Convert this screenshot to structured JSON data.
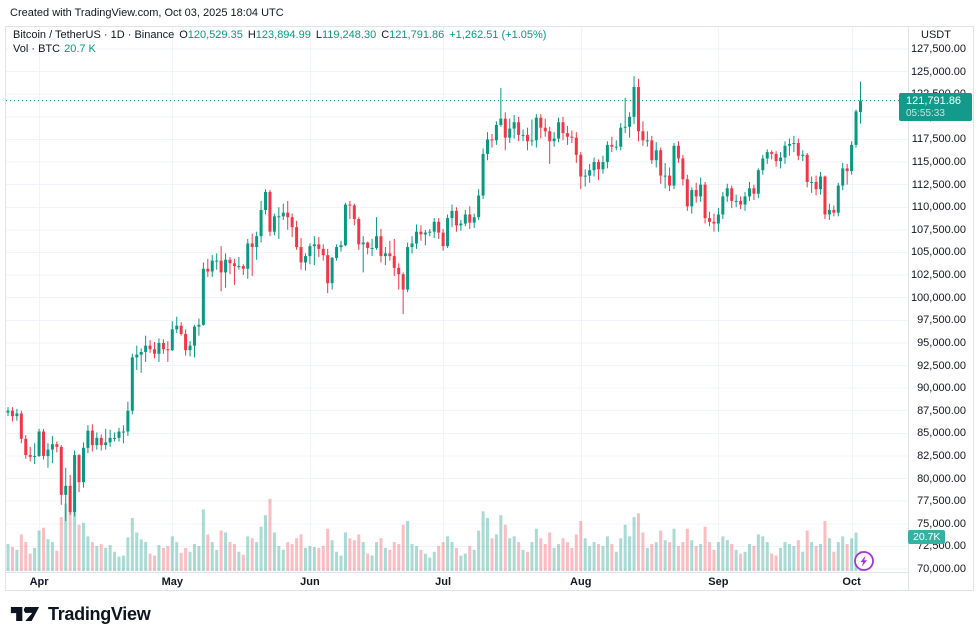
{
  "header": {
    "created_text": "Created with TradingView.com, Oct 03, 2025 18:04 UTC"
  },
  "legend": {
    "title": "Bitcoin / TetherUS · 1D · Binance",
    "ohlc": [
      {
        "label": "O",
        "value": "120,529.35"
      },
      {
        "label": "H",
        "value": "123,894.99"
      },
      {
        "label": "L",
        "value": "119,248.30"
      },
      {
        "label": "C",
        "value": "121,791.86"
      }
    ],
    "change": "+1,262.51 (+1.05%)",
    "volume_label": "Vol · BTC",
    "volume_value": "20.7 K"
  },
  "price_axis": {
    "currency_label": "USDT",
    "ticks": [
      "127,500.00",
      "125,000.00",
      "122,500.00",
      "120,000.00",
      "117,500.00",
      "115,000.00",
      "112,500.00",
      "110,000.00",
      "107,500.00",
      "105,000.00",
      "102,500.00",
      "100,000.00",
      "97,500.00",
      "95,000.00",
      "92,500.00",
      "90,000.00",
      "87,500.00",
      "85,000.00",
      "82,500.00",
      "80,000.00",
      "77,500.00",
      "75,000.00",
      "72,500.00",
      "70,000.00"
    ],
    "price_badge": {
      "price": "121,791.86",
      "countdown": "05:55:33"
    },
    "volume_badge": "20.7K"
  },
  "footer": {
    "brand": "TradingView"
  },
  "colors": {
    "up": "#089981",
    "down": "#f23645",
    "vol_up": "rgba(8,153,129,0.35)",
    "vol_down": "rgba(242,54,69,0.33)",
    "grid": "#f0f3fa",
    "border": "#e0e3eb",
    "text": "#131722",
    "price_line": "#089981",
    "price_badge_bg": "#149a8a",
    "volume_badge_bg": "#36b2a2",
    "lightning": "#a435d2"
  },
  "chart_data": {
    "type": "candlestick",
    "symbol": "Bitcoin / TetherUS",
    "interval": "1D",
    "exchange": "Binance",
    "price_range": [
      70000,
      127500
    ],
    "tick_step": 2500,
    "volume_unit": "K BTC",
    "volume_axis_max": 80,
    "last_price": 121791.86,
    "months": [
      {
        "label": "Apr",
        "day": 7
      },
      {
        "label": "May",
        "day": 37
      },
      {
        "label": "Jun",
        "day": 68
      },
      {
        "label": "Jul",
        "day": 98
      },
      {
        "label": "Aug",
        "day": 129
      },
      {
        "label": "Sep",
        "day": 160
      },
      {
        "label": "Oct",
        "day": 190
      }
    ],
    "candles": [
      [
        87300,
        87900,
        86900,
        87500
      ],
      [
        87500,
        87900,
        86300,
        86900
      ],
      [
        86900,
        87700,
        86400,
        87200
      ],
      [
        87200,
        87500,
        83900,
        84400
      ],
      [
        84400,
        84800,
        82200,
        82600
      ],
      [
        82600,
        83500,
        81900,
        82400
      ],
      [
        82400,
        83900,
        81600,
        82500
      ],
      [
        82500,
        85500,
        82400,
        85200
      ],
      [
        85200,
        85500,
        82100,
        82500
      ],
      [
        82500,
        83900,
        81200,
        83200
      ],
      [
        83200,
        84700,
        81700,
        83800
      ],
      [
        83800,
        84100,
        82900,
        83500
      ],
      [
        83500,
        83700,
        77100,
        78200
      ],
      [
        78200,
        81200,
        75300,
        79200
      ],
      [
        79200,
        80400,
        76000,
        76300
      ],
      [
        76300,
        83100,
        75800,
        82600
      ],
      [
        82600,
        82700,
        78500,
        79600
      ],
      [
        79600,
        84000,
        79000,
        83400
      ],
      [
        83400,
        85900,
        82800,
        85300
      ],
      [
        85300,
        86000,
        83000,
        83700
      ],
      [
        83700,
        85100,
        83200,
        84500
      ],
      [
        84500,
        84900,
        83100,
        83700
      ],
      [
        83700,
        85500,
        83200,
        84000
      ],
      [
        84000,
        85400,
        83500,
        84500
      ],
      [
        84500,
        85100,
        84100,
        84500
      ],
      [
        84500,
        85600,
        84100,
        85200
      ],
      [
        85200,
        85900,
        83900,
        85200
      ],
      [
        85200,
        88500,
        84700,
        87500
      ],
      [
        87500,
        93800,
        87100,
        93400
      ],
      [
        93400,
        94700,
        92000,
        93700
      ],
      [
        93700,
        94400,
        91700,
        94000
      ],
      [
        94000,
        95800,
        92900,
        94700
      ],
      [
        94700,
        95300,
        93900,
        94300
      ],
      [
        94300,
        95100,
        93300,
        93800
      ],
      [
        93800,
        95500,
        92900,
        95000
      ],
      [
        95000,
        95400,
        93800,
        94300
      ],
      [
        94300,
        95200,
        92900,
        94200
      ],
      [
        94200,
        97400,
        94100,
        96500
      ],
      [
        96500,
        97900,
        96100,
        96900
      ],
      [
        96900,
        97300,
        95800,
        96000
      ],
      [
        96000,
        96500,
        93600,
        94200
      ],
      [
        94200,
        95200,
        93500,
        94700
      ],
      [
        94700,
        97000,
        93400,
        96800
      ],
      [
        96800,
        97700,
        95800,
        97000
      ],
      [
        97000,
        103900,
        96900,
        103200
      ],
      [
        103200,
        104300,
        102300,
        102900
      ],
      [
        102900,
        104700,
        102300,
        104100
      ],
      [
        104100,
        104900,
        103100,
        104100
      ],
      [
        104100,
        105700,
        100700,
        102800
      ],
      [
        102800,
        104900,
        101100,
        104200
      ],
      [
        104200,
        104500,
        102600,
        103800
      ],
      [
        103800,
        104300,
        101400,
        103500
      ],
      [
        103500,
        104500,
        103100,
        103500
      ],
      [
        103500,
        103700,
        102500,
        103200
      ],
      [
        103200,
        106500,
        102100,
        106000
      ],
      [
        106000,
        107100,
        102400,
        105600
      ],
      [
        105600,
        107300,
        104200,
        106800
      ],
      [
        106800,
        110700,
        106100,
        109700
      ],
      [
        109700,
        112000,
        109200,
        111700
      ],
      [
        111700,
        111900,
        106800,
        107300
      ],
      [
        107300,
        109300,
        106900,
        109000
      ],
      [
        109000,
        110000,
        106500,
        109000
      ],
      [
        109000,
        110400,
        108600,
        109400
      ],
      [
        109400,
        110700,
        107500,
        108900
      ],
      [
        108900,
        109300,
        106700,
        107800
      ],
      [
        107800,
        108500,
        105300,
        105600
      ],
      [
        105600,
        106600,
        103100,
        103900
      ],
      [
        103900,
        104900,
        103000,
        104600
      ],
      [
        104600,
        106000,
        103700,
        105700
      ],
      [
        105700,
        106800,
        103600,
        105900
      ],
      [
        105900,
        106700,
        104500,
        105400
      ],
      [
        105400,
        105900,
        104100,
        104700
      ],
      [
        104700,
        105400,
        100500,
        101600
      ],
      [
        101600,
        104500,
        100900,
        104400
      ],
      [
        104400,
        105900,
        104100,
        105600
      ],
      [
        105600,
        106300,
        105100,
        105800
      ],
      [
        105800,
        110500,
        105700,
        110300
      ],
      [
        110300,
        110700,
        108700,
        110200
      ],
      [
        110200,
        110400,
        108000,
        108700
      ],
      [
        108700,
        108900,
        105300,
        105900
      ],
      [
        105900,
        106800,
        102800,
        106100
      ],
      [
        106100,
        106200,
        104800,
        105500
      ],
      [
        105500,
        106500,
        104600,
        105500
      ],
      [
        105500,
        108900,
        105300,
        106800
      ],
      [
        106800,
        107600,
        103900,
        104600
      ],
      [
        104600,
        105600,
        103600,
        104900
      ],
      [
        104900,
        106300,
        104100,
        104600
      ],
      [
        104600,
        106500,
        102400,
        103300
      ],
      [
        103300,
        103800,
        100900,
        102600
      ],
      [
        102600,
        102800,
        98200,
        100900
      ],
      [
        100900,
        106100,
        100600,
        105600
      ],
      [
        105600,
        106800,
        104900,
        106000
      ],
      [
        106000,
        108100,
        105400,
        107300
      ],
      [
        107300,
        108000,
        106300,
        107000
      ],
      [
        107000,
        107500,
        105800,
        107200
      ],
      [
        107200,
        107600,
        106800,
        107300
      ],
      [
        107300,
        108800,
        106600,
        108400
      ],
      [
        108400,
        108800,
        106500,
        107200
      ],
      [
        107200,
        107600,
        105200,
        105700
      ],
      [
        105700,
        109200,
        105500,
        108800
      ],
      [
        108800,
        110300,
        107800,
        109600
      ],
      [
        109600,
        110000,
        107300,
        108000
      ],
      [
        108000,
        108600,
        107400,
        108200
      ],
      [
        108200,
        109700,
        107900,
        109200
      ],
      [
        109200,
        110100,
        107600,
        108300
      ],
      [
        108300,
        109300,
        107700,
        108900
      ],
      [
        108900,
        112000,
        108600,
        111300
      ],
      [
        111300,
        116500,
        110900,
        115900
      ],
      [
        115900,
        118300,
        115200,
        117500
      ],
      [
        117500,
        118100,
        116600,
        117400
      ],
      [
        117400,
        119500,
        116900,
        119100
      ],
      [
        119100,
        123200,
        118900,
        119800
      ],
      [
        119800,
        120500,
        116300,
        117700
      ],
      [
        117700,
        119800,
        117100,
        118700
      ],
      [
        118700,
        120200,
        117600,
        119400
      ],
      [
        119400,
        120000,
        117300,
        118000
      ],
      [
        118000,
        118600,
        117300,
        118000
      ],
      [
        118000,
        118800,
        116300,
        117300
      ],
      [
        117300,
        119700,
        116800,
        117400
      ],
      [
        117400,
        120300,
        116600,
        119900
      ],
      [
        119900,
        120300,
        117600,
        118800
      ],
      [
        118800,
        119800,
        117800,
        118400
      ],
      [
        118400,
        118900,
        114800,
        117300
      ],
      [
        117300,
        118300,
        116700,
        117600
      ],
      [
        117600,
        119900,
        117200,
        119400
      ],
      [
        119400,
        120000,
        117400,
        118200
      ],
      [
        118200,
        119000,
        116900,
        117800
      ],
      [
        117800,
        118500,
        117100,
        117700
      ],
      [
        117700,
        118300,
        114900,
        115800
      ],
      [
        115800,
        116100,
        112000,
        113400
      ],
      [
        113400,
        114200,
        112300,
        113500
      ],
      [
        113500,
        114800,
        112700,
        114100
      ],
      [
        114100,
        115500,
        113400,
        115000
      ],
      [
        115000,
        115300,
        113000,
        114200
      ],
      [
        114200,
        115700,
        113700,
        115000
      ],
      [
        115000,
        117300,
        114300,
        116900
      ],
      [
        116900,
        117800,
        116100,
        116700
      ],
      [
        116700,
        117400,
        116300,
        116700
      ],
      [
        116700,
        119300,
        116300,
        118800
      ],
      [
        118800,
        122100,
        118200,
        118900
      ],
      [
        118900,
        120500,
        117700,
        120000
      ],
      [
        120000,
        124500,
        119200,
        123300
      ],
      [
        123300,
        124200,
        117300,
        118400
      ],
      [
        118400,
        119500,
        116800,
        117400
      ],
      [
        117400,
        118400,
        116700,
        117400
      ],
      [
        117400,
        117900,
        114800,
        115200
      ],
      [
        115200,
        117200,
        114400,
        116300
      ],
      [
        116300,
        116600,
        112600,
        113500
      ],
      [
        113500,
        114900,
        112100,
        113500
      ],
      [
        113500,
        114400,
        111800,
        112400
      ],
      [
        112400,
        117100,
        112000,
        116800
      ],
      [
        116800,
        117300,
        114900,
        115400
      ],
      [
        115400,
        115800,
        112400,
        113100
      ],
      [
        113100,
        113600,
        109600,
        110100
      ],
      [
        110100,
        112200,
        109300,
        111900
      ],
      [
        111900,
        112700,
        110500,
        111200
      ],
      [
        111200,
        113300,
        110600,
        112500
      ],
      [
        112500,
        112800,
        108200,
        108800
      ],
      [
        108800,
        109500,
        107900,
        108400
      ],
      [
        108400,
        109300,
        107300,
        108200
      ],
      [
        108200,
        109900,
        107300,
        109200
      ],
      [
        109200,
        111700,
        108700,
        111200
      ],
      [
        111200,
        112600,
        110600,
        112100
      ],
      [
        112100,
        112400,
        109900,
        110700
      ],
      [
        110700,
        111400,
        110000,
        110700
      ],
      [
        110700,
        111200,
        109800,
        110300
      ],
      [
        110300,
        111700,
        109600,
        111200
      ],
      [
        111200,
        112800,
        110700,
        112100
      ],
      [
        112100,
        112500,
        110800,
        111500
      ],
      [
        111500,
        114300,
        111000,
        114100
      ],
      [
        114100,
        115800,
        113600,
        115400
      ],
      [
        115400,
        116400,
        114800,
        116100
      ],
      [
        116100,
        116300,
        115300,
        115900
      ],
      [
        115900,
        116200,
        114500,
        115100
      ],
      [
        115100,
        116100,
        114300,
        115500
      ],
      [
        115500,
        117300,
        114800,
        116800
      ],
      [
        116800,
        117600,
        115700,
        117000
      ],
      [
        117000,
        117900,
        116100,
        117100
      ],
      [
        117100,
        117600,
        115200,
        115700
      ],
      [
        115700,
        116300,
        115100,
        115800
      ],
      [
        115800,
        116000,
        112200,
        112800
      ],
      [
        112800,
        113400,
        111600,
        112800
      ],
      [
        112800,
        113500,
        111300,
        112000
      ],
      [
        112000,
        113900,
        111400,
        113400
      ],
      [
        113400,
        113500,
        108700,
        109200
      ],
      [
        109200,
        110400,
        108600,
        109700
      ],
      [
        109700,
        110200,
        109000,
        109400
      ],
      [
        109400,
        112700,
        109000,
        112400
      ],
      [
        112400,
        114900,
        111900,
        114300
      ],
      [
        114300,
        114800,
        112500,
        114000
      ],
      [
        114000,
        117300,
        113600,
        116900
      ],
      [
        116900,
        120800,
        116600,
        120600
      ],
      [
        120529.35,
        123894.99,
        119248.3,
        121791.86
      ]
    ],
    "volumes": [
      28,
      25,
      22,
      38,
      30,
      18,
      24,
      42,
      45,
      33,
      30,
      21,
      56,
      70,
      62,
      68,
      48,
      50,
      36,
      30,
      26,
      28,
      24,
      27,
      20,
      15,
      16,
      35,
      55,
      40,
      33,
      30,
      18,
      16,
      27,
      24,
      26,
      36,
      30,
      19,
      24,
      20,
      28,
      26,
      64,
      38,
      30,
      22,
      42,
      40,
      30,
      28,
      20,
      17,
      36,
      34,
      30,
      46,
      58,
      75,
      40,
      26,
      22,
      30,
      28,
      34,
      38,
      24,
      26,
      25,
      24,
      26,
      44,
      32,
      20,
      16,
      40,
      34,
      32,
      38,
      30,
      18,
      16,
      30,
      34,
      24,
      22,
      30,
      28,
      48,
      52,
      28,
      26,
      22,
      18,
      14,
      20,
      26,
      30,
      36,
      30,
      24,
      16,
      18,
      26,
      22,
      42,
      62,
      55,
      34,
      38,
      58,
      48,
      34,
      36,
      30,
      22,
      20,
      30,
      44,
      34,
      28,
      40,
      24,
      28,
      34,
      30,
      24,
      38,
      52,
      34,
      26,
      30,
      28,
      26,
      36,
      28,
      20,
      34,
      48,
      36,
      56,
      60,
      40,
      24,
      28,
      30,
      42,
      32,
      30,
      44,
      26,
      30,
      44,
      32,
      26,
      28,
      46,
      30,
      22,
      30,
      36,
      32,
      28,
      22,
      18,
      20,
      28,
      26,
      38,
      36,
      30,
      18,
      16,
      24,
      30,
      28,
      26,
      32,
      20,
      42,
      30,
      26,
      28,
      52,
      34,
      20,
      30,
      36,
      28,
      34,
      40,
      20.7
    ]
  }
}
